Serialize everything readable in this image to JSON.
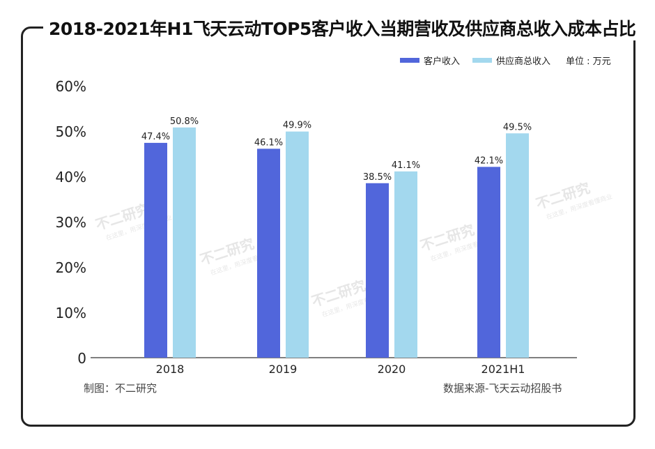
{
  "title": "2018-2021年H1飞天云动TOP5客户收入当期营收及供应商总收入成本占比",
  "unit": "单位 : 万元",
  "footer_left": "制图：不二研究",
  "footer_right": "数据来源-飞天云动招股书",
  "watermark": "不二研究 在这里，用深度看懂商业",
  "chart_data": {
    "type": "bar",
    "categories": [
      "2018",
      "2019",
      "2020",
      "2021H1"
    ],
    "series": [
      {
        "name": "客户收入",
        "color": "#5166db",
        "values": [
          47.4,
          46.1,
          38.5,
          42.1
        ],
        "labels": [
          "47.4%",
          "46.1%",
          "38.5%",
          "42.1%"
        ]
      },
      {
        "name": "供应商总收入",
        "color": "#a3d8ee",
        "values": [
          50.8,
          49.9,
          41.1,
          49.5
        ],
        "labels": [
          "50.8%",
          "49.9%",
          "41.1%",
          "49.5%"
        ]
      }
    ],
    "yticks": [
      "0",
      "10%",
      "20%",
      "30%",
      "40%",
      "50%",
      "60%"
    ],
    "ylim": [
      0,
      60
    ],
    "grid": false,
    "legend": "top-right"
  }
}
